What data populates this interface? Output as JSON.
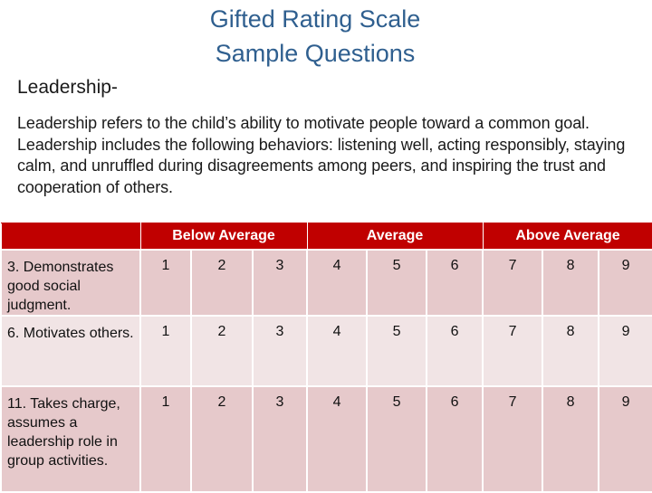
{
  "title": {
    "line1": "Gifted Rating Scale",
    "line2": "Sample Questions"
  },
  "section_label": "Leadership-",
  "description": "Leadership refers to the child’s ability to motivate people toward a common goal. Leadership includes the following behaviors: listening well, acting responsibly, staying calm, and unruffled during disagreements among peers, and inspiring the trust and cooperation of others.",
  "table": {
    "headers": [
      "",
      "Below Average",
      "Average",
      "Above Average"
    ],
    "rows": [
      {
        "item": "3. Demonstrates good social judgment.",
        "ratings": [
          "1",
          "2",
          "3",
          "4",
          "5",
          "6",
          "7",
          "8",
          "9"
        ]
      },
      {
        "item": "6. Motivates others.",
        "ratings": [
          "1",
          "2",
          "3",
          "4",
          "5",
          "6",
          "7",
          "8",
          "9"
        ]
      },
      {
        "item": "11. Takes charge, assumes a leadership role in group activities.",
        "ratings": [
          "1",
          "2",
          "3",
          "4",
          "5",
          "6",
          "7",
          "8",
          "9"
        ]
      }
    ]
  },
  "colors": {
    "title": "#2f5f8f",
    "header_bg": "#c00000",
    "row_bg": "#e8c8ca"
  }
}
